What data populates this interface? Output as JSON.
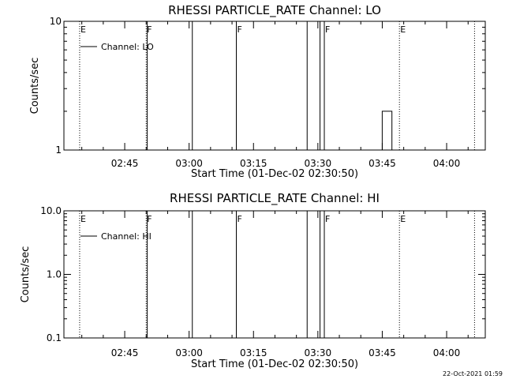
{
  "footer": {
    "timestamp": "22-Oct-2021 01:59"
  },
  "chart_data": [
    {
      "type": "line",
      "title": "RHESSI PARTICLE_RATE Channel: LO",
      "xlabel": "Start Time (01-Dec-02 02:30:50)",
      "ylabel": "Counts/sec",
      "yscale": "log",
      "ylim": [
        1,
        10
      ],
      "y_tick_labels": [
        "1",
        "10"
      ],
      "xlim": [
        "02:30:50",
        "04:09:00"
      ],
      "x_tick_labels": [
        "02:45",
        "03:00",
        "03:15",
        "03:30",
        "03:45",
        "04:00"
      ],
      "legend": {
        "position": "top-left",
        "entries": [
          "Channel: LO"
        ]
      },
      "series": [
        {
          "name": "Channel: LO",
          "points": [
            [
              "03:45:00",
              1
            ],
            [
              "03:45:00",
              2
            ],
            [
              "03:47:15",
              2
            ],
            [
              "03:47:15",
              1
            ]
          ]
        }
      ],
      "vertical_lines": [
        {
          "time": "02:34:30",
          "style": "dotted",
          "label": "E"
        },
        {
          "time": "02:50:00",
          "style": "dotted",
          "label": "F"
        },
        {
          "time": "02:50:15",
          "style": "solid",
          "label": ""
        },
        {
          "time": "03:00:45",
          "style": "solid",
          "label": ""
        },
        {
          "time": "03:11:00",
          "style": "solid",
          "label": "F"
        },
        {
          "time": "03:27:30",
          "style": "solid",
          "label": ""
        },
        {
          "time": "03:30:30",
          "style": "solid",
          "label": ""
        },
        {
          "time": "03:31:30",
          "style": "solid",
          "label": "F"
        },
        {
          "time": "03:49:00",
          "style": "dotted",
          "label": "E"
        },
        {
          "time": "04:06:30",
          "style": "dotted",
          "label": ""
        }
      ]
    },
    {
      "type": "line",
      "title": "RHESSI PARTICLE_RATE Channel: HI",
      "xlabel": "Start Time (01-Dec-02 02:30:50)",
      "ylabel": "Counts/sec",
      "yscale": "log",
      "ylim": [
        0.1,
        10
      ],
      "y_tick_labels": [
        "0.1",
        "1.0",
        "10.0"
      ],
      "xlim": [
        "02:30:50",
        "04:09:00"
      ],
      "x_tick_labels": [
        "02:45",
        "03:00",
        "03:15",
        "03:30",
        "03:45",
        "04:00"
      ],
      "legend": {
        "position": "top-left",
        "entries": [
          "Channel: HI"
        ]
      },
      "series": [
        {
          "name": "Channel: HI",
          "points": []
        }
      ],
      "vertical_lines": [
        {
          "time": "02:34:30",
          "style": "dotted",
          "label": "E"
        },
        {
          "time": "02:50:00",
          "style": "dotted",
          "label": "F"
        },
        {
          "time": "02:50:15",
          "style": "solid",
          "label": ""
        },
        {
          "time": "03:00:45",
          "style": "solid",
          "label": ""
        },
        {
          "time": "03:11:00",
          "style": "solid",
          "label": "F"
        },
        {
          "time": "03:27:30",
          "style": "solid",
          "label": ""
        },
        {
          "time": "03:30:30",
          "style": "solid",
          "label": ""
        },
        {
          "time": "03:31:30",
          "style": "solid",
          "label": "F"
        },
        {
          "time": "03:49:00",
          "style": "dotted",
          "label": "E"
        },
        {
          "time": "04:06:30",
          "style": "dotted",
          "label": ""
        }
      ]
    }
  ]
}
